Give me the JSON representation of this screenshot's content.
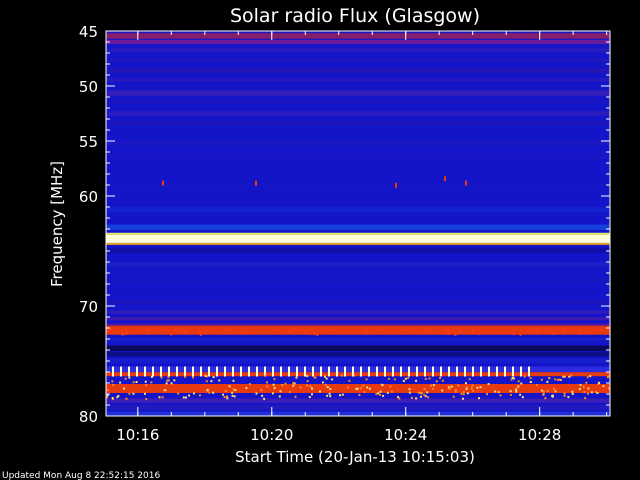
{
  "chart_data": {
    "type": "heatmap",
    "title": "Solar radio Flux (Glasgow)",
    "xlabel": "Start Time (20-Jan-13 10:15:03)",
    "ylabel": "Frequency [MHz]",
    "x_ticks": [
      "10:16",
      "10:20",
      "10:24",
      "10:28"
    ],
    "y_ticks": [
      45,
      50,
      55,
      60,
      70,
      80
    ],
    "xlim": [
      "10:15:03",
      "10:30:06"
    ],
    "ylim": [
      45,
      80
    ],
    "y_inverted": true,
    "colors": {
      "background": "#000000",
      "low": "#1414c8",
      "mid": "#5a2aa8",
      "high": "#e83a10",
      "max": "#ffffd8"
    },
    "bands": [
      {
        "freq_mhz": 63.9,
        "intensity": "max"
      },
      {
        "freq_mhz": 72.2,
        "intensity": "high"
      },
      {
        "freq_mhz": 76.2,
        "intensity": "high"
      },
      {
        "freq_mhz": 77.5,
        "intensity": "high"
      }
    ]
  },
  "footer": {
    "updated": "Updated Mon Aug  8 22:52:15 2016"
  }
}
